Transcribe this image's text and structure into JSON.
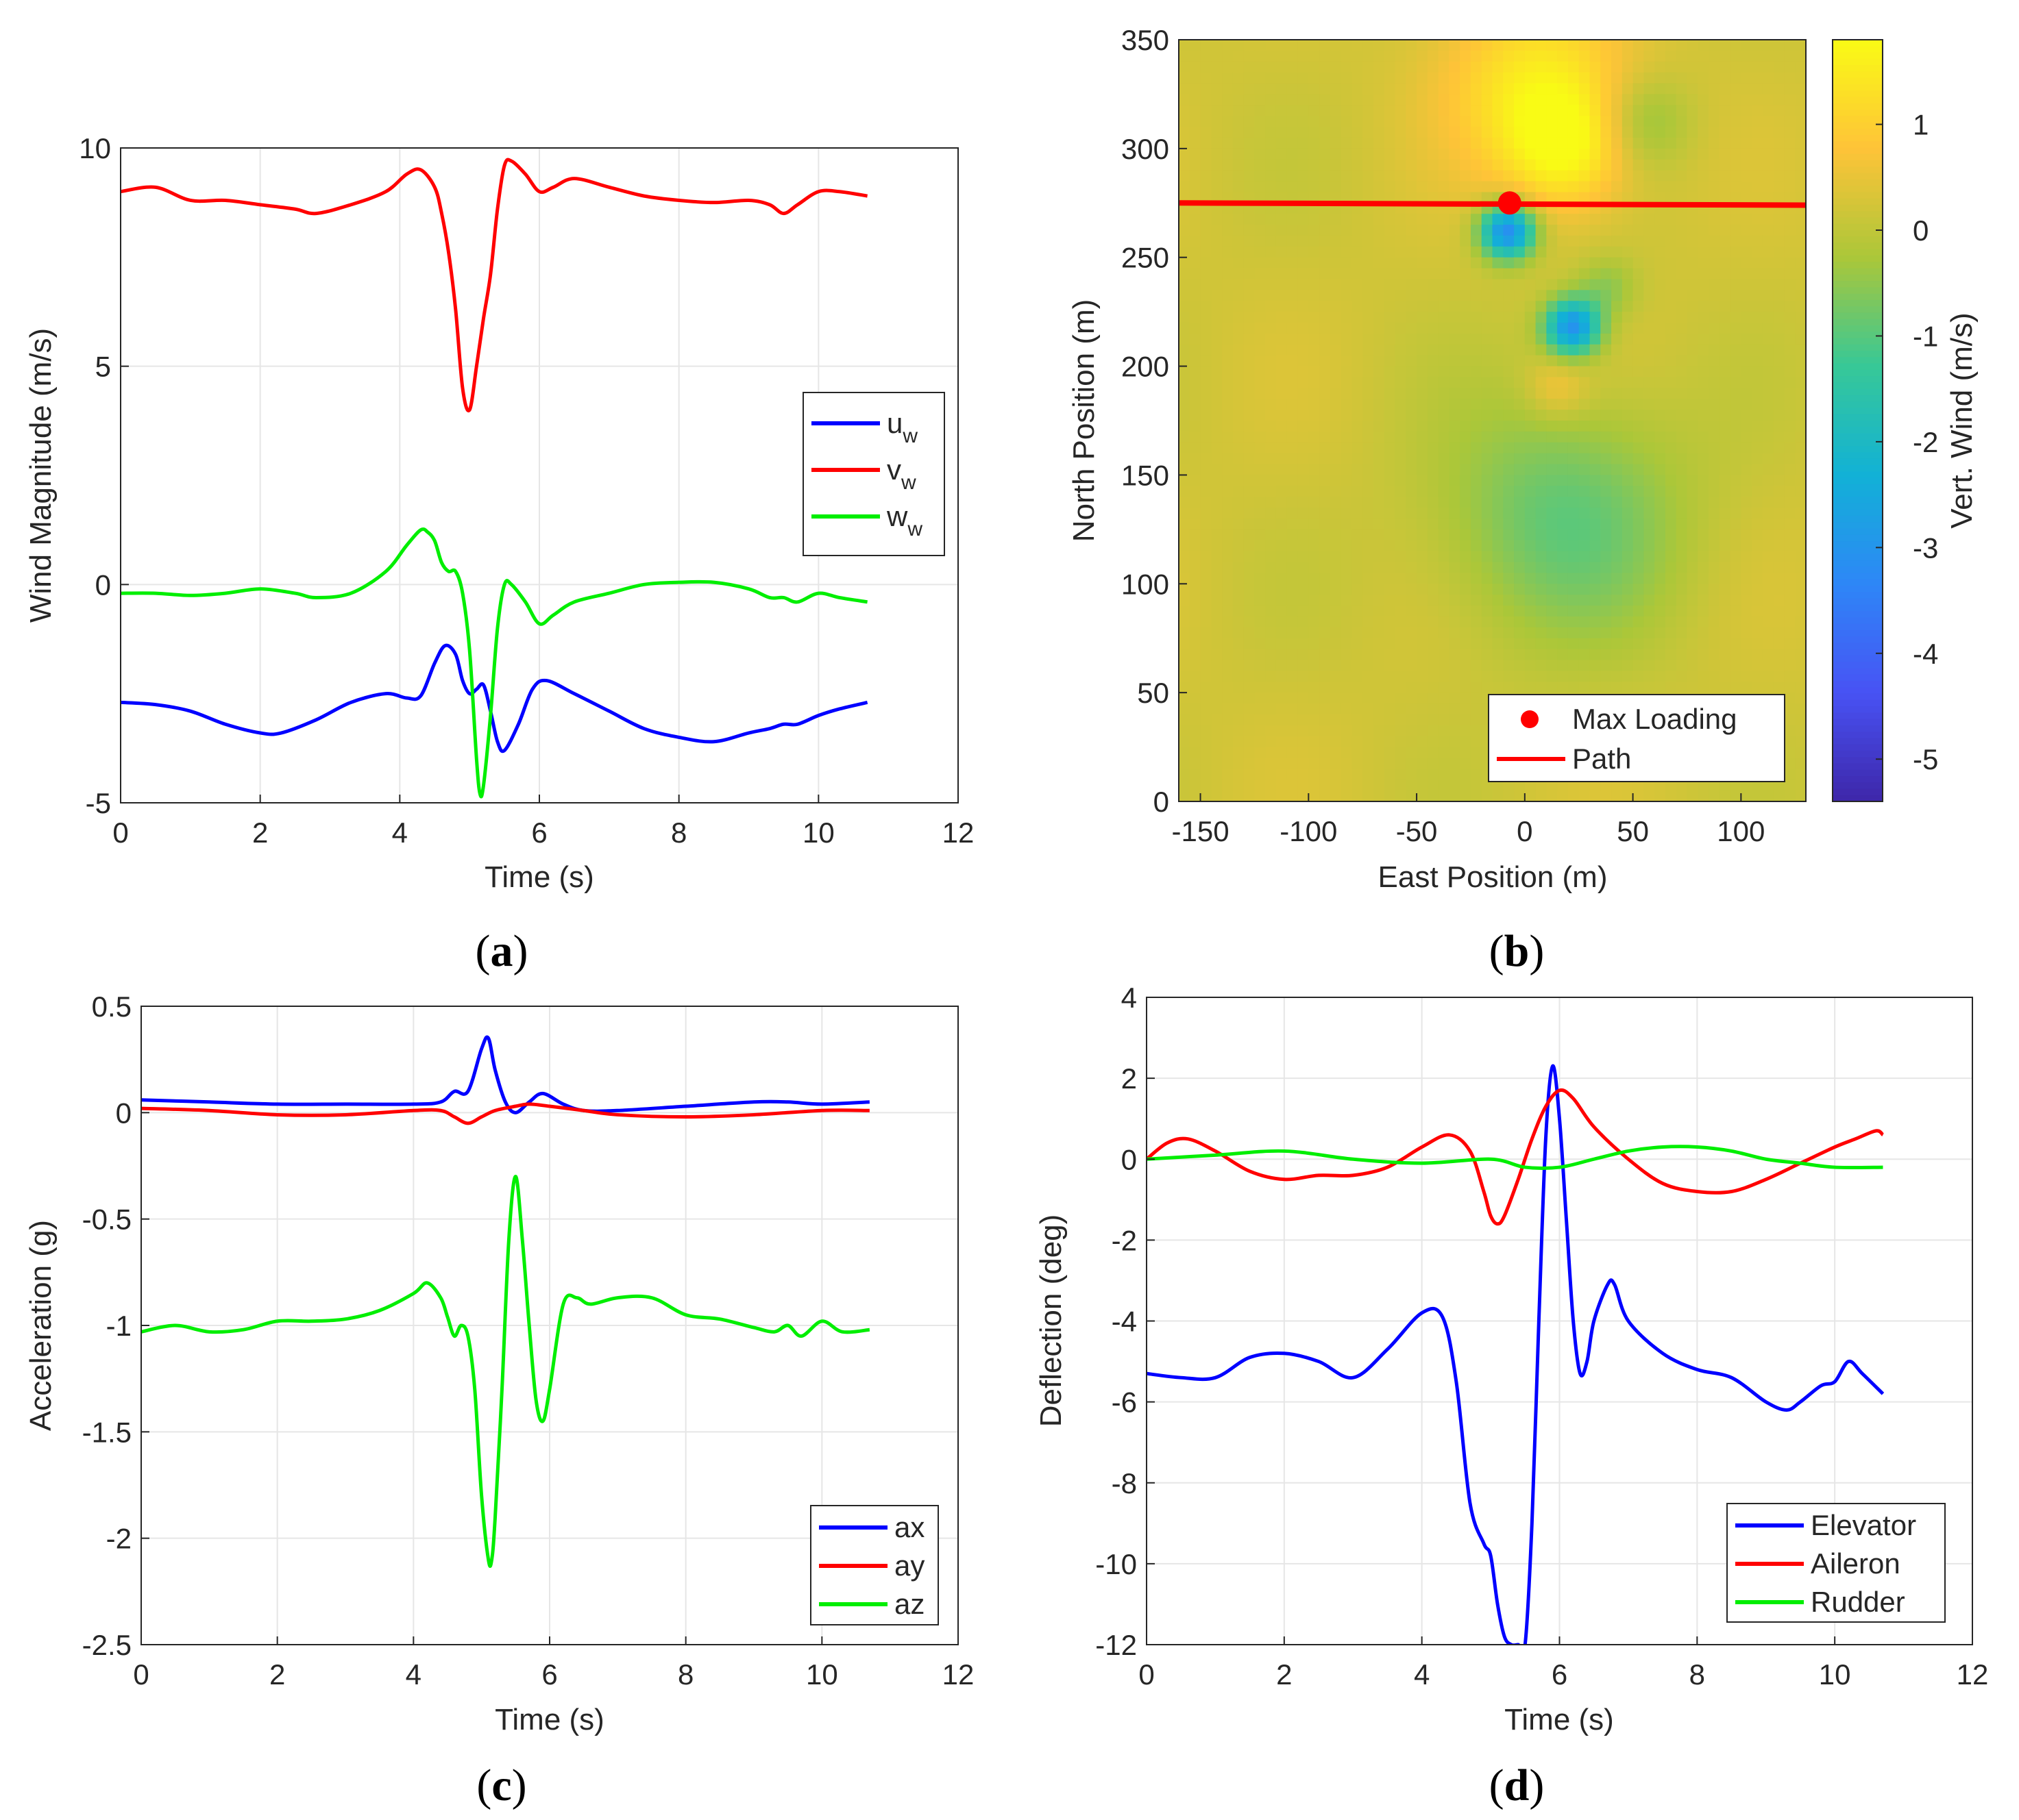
{
  "chart_data": [
    {
      "panel": "a",
      "type": "line",
      "xlabel": "Time (s)",
      "ylabel": "Wind Magnitude (m/s)",
      "xlim": [
        0,
        12
      ],
      "ylim": [
        -5,
        10
      ],
      "xticks": [
        "0",
        "2",
        "4",
        "6",
        "8",
        "10",
        "12"
      ],
      "yticks": [
        "-5",
        "0",
        "5",
        "10"
      ],
      "grid": true,
      "legend_position": "right",
      "series": [
        {
          "name": "u",
          "subscript": "w",
          "color": "#0000ff",
          "x": [
            0,
            0.5,
            1.0,
            1.5,
            2.0,
            2.3,
            2.8,
            3.3,
            3.8,
            4.1,
            4.3,
            4.5,
            4.65,
            4.8,
            4.9,
            5.0,
            5.1,
            5.2,
            5.3,
            5.4,
            5.5,
            5.7,
            5.9,
            6.1,
            6.5,
            7.0,
            7.5,
            8.0,
            8.5,
            9.0,
            9.3,
            9.5,
            9.7,
            10.0,
            10.3,
            10.7
          ],
          "y": [
            -2.7,
            -2.75,
            -2.9,
            -3.2,
            -3.4,
            -3.4,
            -3.1,
            -2.7,
            -2.5,
            -2.6,
            -2.55,
            -1.8,
            -1.4,
            -1.6,
            -2.2,
            -2.5,
            -2.4,
            -2.3,
            -2.9,
            -3.6,
            -3.8,
            -3.2,
            -2.4,
            -2.2,
            -2.5,
            -2.9,
            -3.3,
            -3.5,
            -3.6,
            -3.4,
            -3.3,
            -3.2,
            -3.2,
            -3.0,
            -2.85,
            -2.7
          ]
        },
        {
          "name": "v",
          "subscript": "w",
          "color": "#ff0000",
          "x": [
            0,
            0.5,
            1.0,
            1.5,
            2.0,
            2.5,
            2.8,
            3.3,
            3.8,
            4.1,
            4.3,
            4.5,
            4.6,
            4.7,
            4.8,
            4.9,
            5.0,
            5.1,
            5.2,
            5.3,
            5.4,
            5.5,
            5.6,
            5.8,
            6.0,
            6.2,
            6.5,
            7.0,
            7.5,
            8.0,
            8.5,
            9.0,
            9.3,
            9.5,
            9.7,
            10.0,
            10.3,
            10.7
          ],
          "y": [
            9.0,
            9.1,
            8.8,
            8.8,
            8.7,
            8.6,
            8.5,
            8.7,
            9.0,
            9.4,
            9.5,
            9.1,
            8.5,
            7.6,
            6.3,
            4.5,
            4.0,
            5.0,
            6.1,
            7.1,
            8.6,
            9.6,
            9.7,
            9.4,
            9.0,
            9.1,
            9.3,
            9.1,
            8.9,
            8.8,
            8.75,
            8.8,
            8.7,
            8.5,
            8.7,
            9.0,
            9.0,
            8.9
          ]
        },
        {
          "name": "w",
          "subscript": "w",
          "color": "#00ee00",
          "x": [
            0,
            0.5,
            1.0,
            1.5,
            2.0,
            2.5,
            2.8,
            3.3,
            3.8,
            4.1,
            4.3,
            4.4,
            4.5,
            4.6,
            4.7,
            4.8,
            4.9,
            5.0,
            5.1,
            5.15,
            5.2,
            5.3,
            5.4,
            5.5,
            5.6,
            5.8,
            6.0,
            6.2,
            6.5,
            7.0,
            7.5,
            8.0,
            8.5,
            9.0,
            9.3,
            9.5,
            9.7,
            10.0,
            10.3,
            10.7
          ],
          "y": [
            -0.2,
            -0.2,
            -0.25,
            -0.2,
            -0.1,
            -0.2,
            -0.3,
            -0.2,
            0.3,
            0.9,
            1.25,
            1.2,
            1.0,
            0.5,
            0.3,
            0.3,
            -0.2,
            -1.5,
            -4.0,
            -4.8,
            -4.6,
            -3.0,
            -1.0,
            0.0,
            0.0,
            -0.4,
            -0.9,
            -0.7,
            -0.4,
            -0.2,
            0.0,
            0.05,
            0.05,
            -0.1,
            -0.3,
            -0.3,
            -0.4,
            -0.2,
            -0.3,
            -0.4
          ]
        }
      ]
    },
    {
      "panel": "b",
      "type": "heatmap",
      "xlabel": "East Position (m)",
      "ylabel": "North Position (m)",
      "colorbar_label": "Vert. Wind (m/s)",
      "xlim": [
        -160,
        130
      ],
      "ylim": [
        0,
        350
      ],
      "clim": [
        -5.4,
        1.8
      ],
      "xticks": [
        "-150",
        "-100",
        "-50",
        "0",
        "50",
        "100"
      ],
      "yticks": [
        "0",
        "50",
        "100",
        "150",
        "200",
        "250",
        "300",
        "350"
      ],
      "colorbar_ticks": [
        "-5",
        "-4",
        "-3",
        "-2",
        "-1",
        "0",
        "1"
      ],
      "legend_position": "bottom-right",
      "background_value": 0.2,
      "features": [
        {
          "east": 5,
          "north": 330,
          "value": 1.4,
          "spread": 30
        },
        {
          "east": 20,
          "north": 300,
          "value": 1.5,
          "spread": 20
        },
        {
          "east": -8,
          "north": 262,
          "value": -3.3,
          "spread": 9
        },
        {
          "east": 22,
          "north": 218,
          "value": -3.0,
          "spread": 9
        },
        {
          "east": 18,
          "north": 130,
          "value": -0.9,
          "spread": 40
        },
        {
          "east": 55,
          "north": 312,
          "value": -0.6,
          "spread": 15
        },
        {
          "east": 38,
          "north": 236,
          "value": -0.5,
          "spread": 10
        },
        {
          "east": 15,
          "north": 190,
          "value": 0.8,
          "spread": 10
        }
      ],
      "series": [
        {
          "name": "Max Loading",
          "kind": "marker",
          "color": "#ff0000",
          "x": [
            -7
          ],
          "y": [
            275
          ]
        },
        {
          "name": "Path",
          "kind": "line",
          "color": "#ff0000",
          "x": [
            -160,
            130
          ],
          "y": [
            275,
            274
          ]
        }
      ]
    },
    {
      "panel": "c",
      "type": "line",
      "xlabel": "Time (s)",
      "ylabel": "Acceleration (g)",
      "xlim": [
        0,
        12
      ],
      "ylim": [
        -2.5,
        0.5
      ],
      "xticks": [
        "0",
        "2",
        "4",
        "6",
        "8",
        "10",
        "12"
      ],
      "yticks": [
        "-2.5",
        "-2",
        "-1.5",
        "-1",
        "-0.5",
        "0",
        "0.5"
      ],
      "grid": true,
      "legend_position": "bottom-right",
      "series": [
        {
          "name": "ax",
          "color": "#0000ff",
          "x": [
            0,
            1.0,
            2.0,
            3.0,
            4.0,
            4.4,
            4.6,
            4.8,
            5.0,
            5.1,
            5.2,
            5.35,
            5.5,
            5.7,
            5.9,
            6.2,
            6.5,
            7.0,
            8.0,
            9.0,
            9.5,
            10.0,
            10.7
          ],
          "y": [
            0.06,
            0.05,
            0.04,
            0.04,
            0.04,
            0.05,
            0.1,
            0.1,
            0.3,
            0.35,
            0.2,
            0.05,
            0.0,
            0.05,
            0.09,
            0.04,
            0.01,
            0.01,
            0.03,
            0.05,
            0.05,
            0.04,
            0.05
          ]
        },
        {
          "name": "ay",
          "color": "#ff0000",
          "x": [
            0,
            1.0,
            2.0,
            3.0,
            4.0,
            4.4,
            4.6,
            4.8,
            5.0,
            5.2,
            5.5,
            5.7,
            6.0,
            6.5,
            7.0,
            8.0,
            9.0,
            10.0,
            10.7
          ],
          "y": [
            0.02,
            0.01,
            -0.01,
            -0.01,
            0.01,
            0.01,
            -0.02,
            -0.05,
            -0.02,
            0.01,
            0.03,
            0.04,
            0.03,
            0.01,
            -0.01,
            -0.02,
            -0.01,
            0.01,
            0.01
          ]
        },
        {
          "name": "az",
          "color": "#00ee00",
          "x": [
            0,
            0.5,
            1.0,
            1.5,
            2.0,
            2.5,
            3.0,
            3.5,
            4.0,
            4.2,
            4.4,
            4.5,
            4.6,
            4.7,
            4.8,
            4.9,
            5.0,
            5.1,
            5.15,
            5.2,
            5.3,
            5.4,
            5.5,
            5.6,
            5.7,
            5.8,
            5.9,
            6.0,
            6.2,
            6.4,
            6.6,
            7.0,
            7.5,
            8.0,
            8.5,
            9.0,
            9.3,
            9.5,
            9.7,
            10.0,
            10.3,
            10.7
          ],
          "y": [
            -1.03,
            -1.0,
            -1.03,
            -1.02,
            -0.98,
            -0.98,
            -0.97,
            -0.93,
            -0.85,
            -0.8,
            -0.87,
            -0.96,
            -1.05,
            -1.0,
            -1.05,
            -1.3,
            -1.8,
            -2.1,
            -2.1,
            -1.9,
            -1.3,
            -0.6,
            -0.3,
            -0.6,
            -1.0,
            -1.35,
            -1.45,
            -1.3,
            -0.9,
            -0.87,
            -0.9,
            -0.87,
            -0.87,
            -0.95,
            -0.97,
            -1.01,
            -1.03,
            -1.0,
            -1.05,
            -0.98,
            -1.03,
            -1.02
          ]
        }
      ]
    },
    {
      "panel": "d",
      "type": "line",
      "xlabel": "Time (s)",
      "ylabel": "Deflection (deg)",
      "xlim": [
        0,
        12
      ],
      "ylim": [
        -12,
        4
      ],
      "xticks": [
        "0",
        "2",
        "4",
        "6",
        "8",
        "10",
        "12"
      ],
      "yticks": [
        "-12",
        "-10",
        "-8",
        "-6",
        "-4",
        "-2",
        "0",
        "2",
        "4"
      ],
      "grid": true,
      "legend_position": "bottom-right",
      "series": [
        {
          "name": "Elevator",
          "color": "#0000ff",
          "x": [
            0,
            0.5,
            1.0,
            1.5,
            2.0,
            2.5,
            3.0,
            3.5,
            4.0,
            4.3,
            4.5,
            4.7,
            4.9,
            5.0,
            5.1,
            5.2,
            5.3,
            5.4,
            5.5,
            5.6,
            5.7,
            5.8,
            5.9,
            6.0,
            6.1,
            6.2,
            6.3,
            6.4,
            6.5,
            6.7,
            6.8,
            7.0,
            7.5,
            8.0,
            8.5,
            9.0,
            9.3,
            9.5,
            9.8,
            10.0,
            10.2,
            10.4,
            10.7
          ],
          "y": [
            -5.3,
            -5.4,
            -5.4,
            -4.9,
            -4.8,
            -5.0,
            -5.4,
            -4.7,
            -3.8,
            -3.9,
            -5.5,
            -8.5,
            -9.5,
            -9.8,
            -11.0,
            -11.8,
            -12.0,
            -12.0,
            -12.0,
            -9.0,
            -4.0,
            0.5,
            2.3,
            1.0,
            -1.5,
            -4.0,
            -5.3,
            -5.0,
            -4.0,
            -3.1,
            -3.1,
            -4.0,
            -4.8,
            -5.2,
            -5.4,
            -6.0,
            -6.2,
            -6.0,
            -5.6,
            -5.5,
            -5.0,
            -5.3,
            -5.8
          ]
        },
        {
          "name": "Aileron",
          "color": "#ff0000",
          "x": [
            0,
            0.3,
            0.6,
            1.0,
            1.5,
            2.0,
            2.5,
            3.0,
            3.5,
            4.0,
            4.4,
            4.7,
            4.9,
            5.0,
            5.1,
            5.2,
            5.4,
            5.6,
            5.8,
            6.0,
            6.2,
            6.5,
            7.0,
            7.5,
            8.0,
            8.5,
            9.0,
            9.5,
            10.0,
            10.3,
            10.6,
            10.7
          ],
          "y": [
            0.0,
            0.4,
            0.5,
            0.2,
            -0.3,
            -0.5,
            -0.4,
            -0.4,
            -0.2,
            0.3,
            0.6,
            0.2,
            -0.8,
            -1.4,
            -1.6,
            -1.4,
            -0.5,
            0.5,
            1.3,
            1.7,
            1.5,
            0.8,
            0.0,
            -0.6,
            -0.8,
            -0.8,
            -0.5,
            -0.1,
            0.3,
            0.5,
            0.7,
            0.6
          ]
        },
        {
          "name": "Rudder",
          "color": "#00ee00",
          "x": [
            0,
            1.0,
            2.0,
            3.0,
            4.0,
            5.0,
            5.5,
            6.0,
            6.5,
            7.0,
            7.5,
            8.0,
            8.5,
            9.0,
            9.5,
            10.0,
            10.7
          ],
          "y": [
            0.0,
            0.1,
            0.2,
            0.0,
            -0.1,
            0.0,
            -0.2,
            -0.2,
            0.0,
            0.2,
            0.3,
            0.3,
            0.2,
            0.0,
            -0.1,
            -0.2,
            -0.2
          ]
        }
      ]
    }
  ],
  "captions": [
    "(a)",
    "(b)",
    "(c)",
    "(d)"
  ]
}
